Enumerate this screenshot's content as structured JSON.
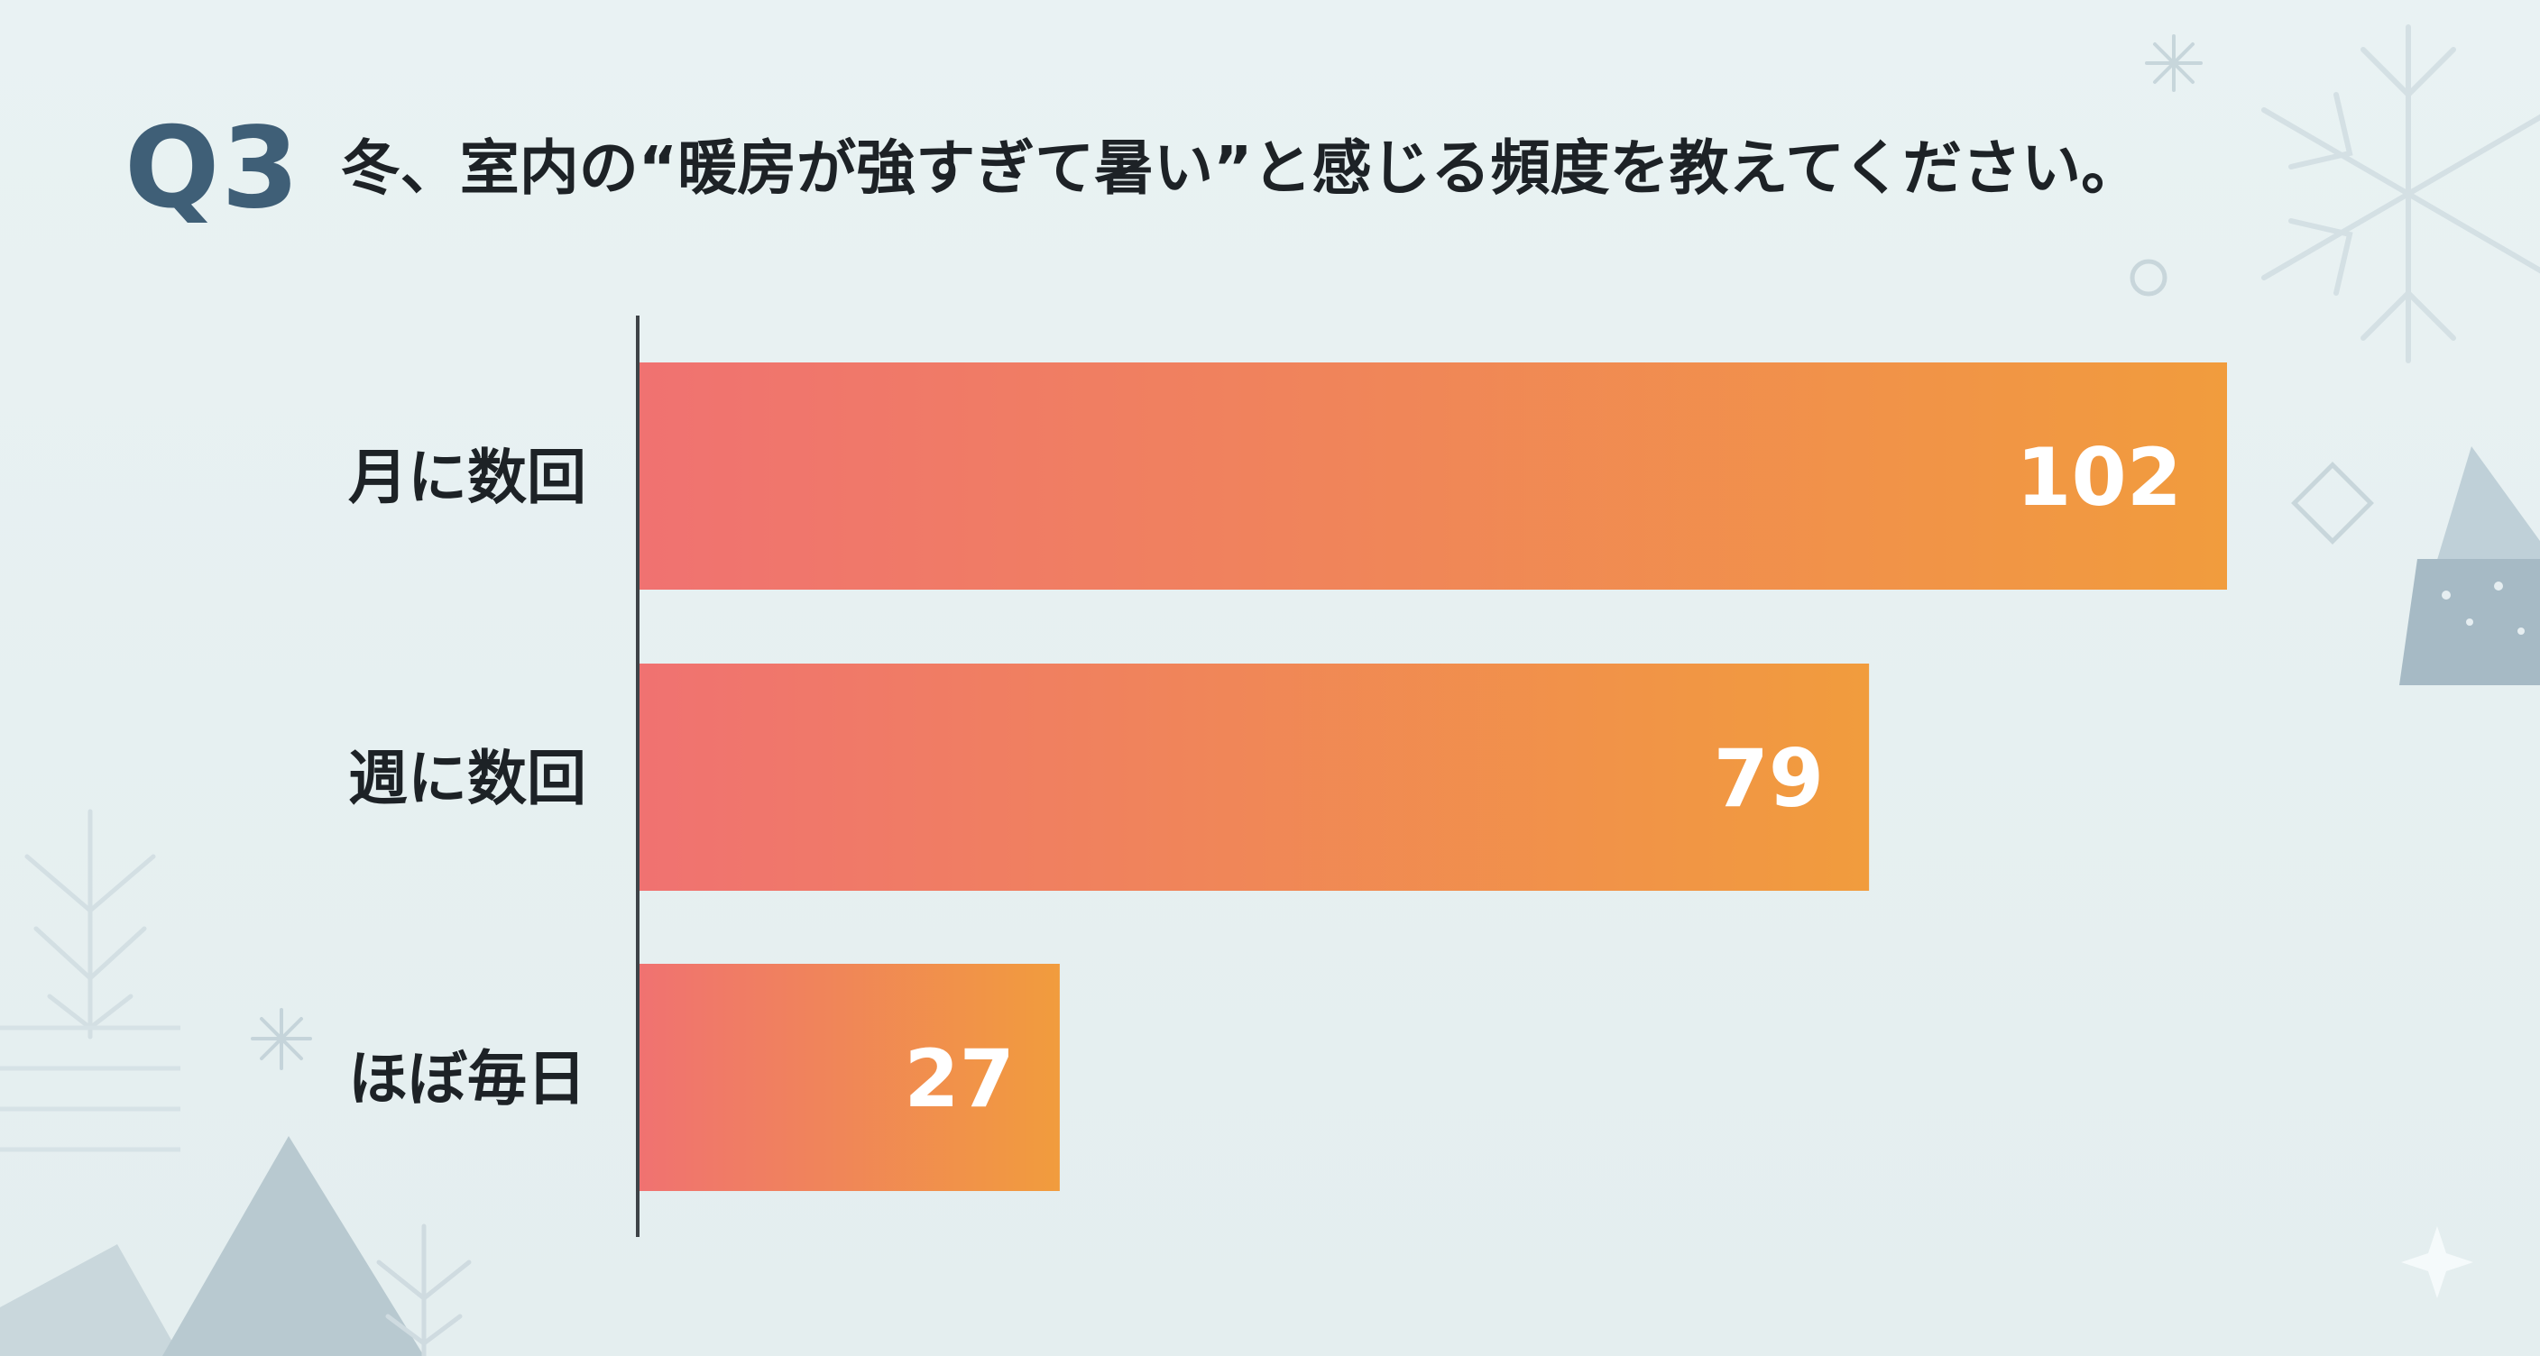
{
  "header": {
    "q_label": "Q3",
    "question": "冬、室内の“暖房が強すぎて暑い”と感じる頻度を教えてください。"
  },
  "colors": {
    "bar_start": "#f07271",
    "bar_end": "#f19c3d",
    "question_label": "#3f5f77",
    "text": "#1d2226",
    "value_text": "#ffffff",
    "axis": "#3e4348",
    "background": "#e6f0f1"
  },
  "chart_data": {
    "type": "bar",
    "orientation": "horizontal",
    "title": "冬、室内の“暖房が強すぎて暑い”と感じる頻度を教えてください。",
    "categories": [
      "月に数回",
      "週に数回",
      "ほぼ毎日"
    ],
    "values": [
      102,
      79,
      27
    ],
    "xlabel": "",
    "ylabel": "",
    "xlim": [
      0,
      102
    ],
    "grid": false,
    "legend": "none",
    "data_labels": [
      "102",
      "79",
      "27"
    ]
  }
}
